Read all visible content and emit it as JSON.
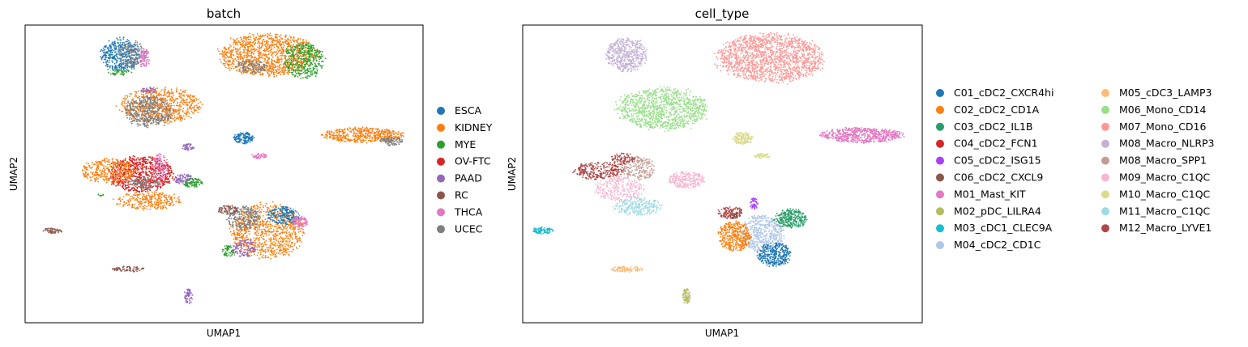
{
  "chart_data": [
    {
      "type": "scatter",
      "title": "batch",
      "xlabel": "UMAP1",
      "ylabel": "UMAP2",
      "xlim": [
        0,
        100
      ],
      "ylim": [
        0,
        100
      ],
      "legend_position": "right",
      "legend_columns": 1,
      "legend": [
        {
          "label": "ESCA",
          "color": "#1f77b4"
        },
        {
          "label": "KIDNEY",
          "color": "#ff7f0e"
        },
        {
          "label": "MYE",
          "color": "#2ca02c"
        },
        {
          "label": "OV-FTC",
          "color": "#d62728"
        },
        {
          "label": "PAAD",
          "color": "#9467bd"
        },
        {
          "label": "RC",
          "color": "#8c564b"
        },
        {
          "label": "THCA",
          "color": "#e377c2"
        },
        {
          "label": "UCEC",
          "color": "#7f7f7f"
        }
      ],
      "clusters": [
        {
          "series": "ESCA",
          "x": 24,
          "y": 90,
          "rx": 5,
          "ry": 5.5,
          "n": 420
        },
        {
          "series": "UCEC",
          "x": 27,
          "y": 90,
          "rx": 3.5,
          "ry": 4.5,
          "n": 150
        },
        {
          "series": "THCA",
          "x": 30,
          "y": 89,
          "rx": 1.5,
          "ry": 3,
          "n": 80
        },
        {
          "series": "MYE",
          "x": 24,
          "y": 84,
          "rx": 3,
          "ry": 1,
          "n": 40
        },
        {
          "series": "KIDNEY",
          "x": 61,
          "y": 90,
          "rx": 12,
          "ry": 7,
          "n": 1200
        },
        {
          "series": "MYE",
          "x": 70,
          "y": 88,
          "rx": 5,
          "ry": 6,
          "n": 380
        },
        {
          "series": "UCEC",
          "x": 57,
          "y": 86,
          "rx": 4,
          "ry": 2,
          "n": 120
        },
        {
          "series": "KIDNEY",
          "x": 34,
          "y": 73,
          "rx": 10,
          "ry": 6,
          "n": 700
        },
        {
          "series": "UCEC",
          "x": 31,
          "y": 71,
          "rx": 6,
          "ry": 5,
          "n": 450
        },
        {
          "series": "PAAD",
          "x": 31,
          "y": 78,
          "rx": 2,
          "ry": 1,
          "n": 40
        },
        {
          "series": "OV-FTC",
          "x": 29,
          "y": 50,
          "rx": 8,
          "ry": 6,
          "n": 800
        },
        {
          "series": "KIDNEY",
          "x": 21,
          "y": 51,
          "rx": 7,
          "ry": 4,
          "n": 350
        },
        {
          "series": "KIDNEY",
          "x": 31,
          "y": 41,
          "rx": 8,
          "ry": 3,
          "n": 280
        },
        {
          "series": "THCA",
          "x": 34,
          "y": 52,
          "rx": 2,
          "ry": 5,
          "n": 90
        },
        {
          "series": "UCEC",
          "x": 30,
          "y": 47,
          "rx": 4,
          "ry": 2,
          "n": 100
        },
        {
          "series": "PAAD",
          "x": 41,
          "y": 59,
          "rx": 1.5,
          "ry": 1.2,
          "n": 45
        },
        {
          "series": "PAAD",
          "x": 40,
          "y": 48,
          "rx": 2.5,
          "ry": 2,
          "n": 90
        },
        {
          "series": "MYE",
          "x": 42,
          "y": 47,
          "rx": 2.5,
          "ry": 1.5,
          "n": 90
        },
        {
          "series": "ESCA",
          "x": 55,
          "y": 62,
          "rx": 2.5,
          "ry": 2,
          "n": 140
        },
        {
          "series": "THCA",
          "x": 59,
          "y": 56,
          "rx": 2,
          "ry": 0.9,
          "n": 45
        },
        {
          "series": "KIDNEY",
          "x": 85,
          "y": 63,
          "rx": 10,
          "ry": 2.5,
          "n": 500
        },
        {
          "series": "UCEC",
          "x": 92,
          "y": 61,
          "rx": 3,
          "ry": 1.5,
          "n": 100
        },
        {
          "series": "KIDNEY",
          "x": 61,
          "y": 31,
          "rx": 9,
          "ry": 9,
          "n": 900
        },
        {
          "series": "UCEC",
          "x": 55,
          "y": 35,
          "rx": 4,
          "ry": 4,
          "n": 250
        },
        {
          "series": "ESCA",
          "x": 65,
          "y": 36,
          "rx": 4,
          "ry": 3,
          "n": 200
        },
        {
          "series": "THCA",
          "x": 69,
          "y": 34,
          "rx": 2,
          "ry": 2,
          "n": 100
        },
        {
          "series": "PAAD",
          "x": 55,
          "y": 25,
          "rx": 3,
          "ry": 3,
          "n": 120
        },
        {
          "series": "MYE",
          "x": 51,
          "y": 24,
          "rx": 1.5,
          "ry": 2,
          "n": 50
        },
        {
          "series": "RC",
          "x": 51,
          "y": 38,
          "rx": 2.5,
          "ry": 1.5,
          "n": 80
        },
        {
          "series": "RC",
          "x": 7,
          "y": 31,
          "rx": 2.5,
          "ry": 0.9,
          "n": 60
        },
        {
          "series": "RC",
          "x": 26,
          "y": 18,
          "rx": 4,
          "ry": 0.9,
          "n": 70
        },
        {
          "series": "PAAD",
          "x": 41,
          "y": 9,
          "rx": 1,
          "ry": 2.5,
          "n": 60
        },
        {
          "series": "MYE",
          "x": 19,
          "y": 43,
          "rx": 0.8,
          "ry": 0.5,
          "n": 8
        }
      ]
    },
    {
      "type": "scatter",
      "title": "cell_type",
      "xlabel": "UMAP1",
      "ylabel": "UMAP2",
      "xlim": [
        0,
        100
      ],
      "ylim": [
        0,
        100
      ],
      "legend_position": "right",
      "legend_columns": 2,
      "legend": [
        {
          "label": "C01_cDC2_CXCR4hi",
          "color": "#1f77b4"
        },
        {
          "label": "C02_cDC2_CD1A",
          "color": "#ff7f0e"
        },
        {
          "label": "C03_cDC2_IL1B",
          "color": "#279e68"
        },
        {
          "label": "C04_cDC2_FCN1",
          "color": "#d62728"
        },
        {
          "label": "C05_cDC2_ISG15",
          "color": "#aa40fc"
        },
        {
          "label": "C06_cDC2_CXCL9",
          "color": "#8c564b"
        },
        {
          "label": "M01_Mast_KIT",
          "color": "#e377c2"
        },
        {
          "label": "M02_pDC_LILRA4",
          "color": "#b5bd61"
        },
        {
          "label": "M03_cDC1_CLEC9A",
          "color": "#17becf"
        },
        {
          "label": "M04_cDC2_CD1C",
          "color": "#aec7e8"
        },
        {
          "label": "M05_cDC3_LAMP3",
          "color": "#ffbb78"
        },
        {
          "label": "M06_Mono_CD14",
          "color": "#98df8a"
        },
        {
          "label": "M07_Mono_CD16",
          "color": "#ff9896"
        },
        {
          "label": "M08_Macro_NLRP3",
          "color": "#c5b0d5"
        },
        {
          "label": "M08_Macro_SPP1",
          "color": "#c49c94"
        },
        {
          "label": "M09_Macro_C1QC",
          "color": "#f7b6d2"
        },
        {
          "label": "M10_Macro_C1QC",
          "color": "#dbdb8d"
        },
        {
          "label": "M11_Macro_C1QC",
          "color": "#9edae5"
        },
        {
          "label": "M12_Macro_LYVE1",
          "color": "#ad494a"
        }
      ],
      "clusters": [
        {
          "series": "M08_Macro_NLRP3",
          "x": 26,
          "y": 90,
          "rx": 5,
          "ry": 5.5,
          "n": 500
        },
        {
          "series": "M07_Mono_CD16",
          "x": 62,
          "y": 89,
          "rx": 13,
          "ry": 8,
          "n": 1600
        },
        {
          "series": "M06_Mono_CD14",
          "x": 35,
          "y": 72,
          "rx": 11,
          "ry": 7,
          "n": 1100
        },
        {
          "series": "M12_Macro_LYVE1",
          "x": 19,
          "y": 51,
          "rx": 6,
          "ry": 3,
          "n": 260
        },
        {
          "series": "M08_Macro_SPP1",
          "x": 29,
          "y": 52,
          "rx": 4,
          "ry": 4,
          "n": 220
        },
        {
          "series": "M09_Macro_C1QC",
          "x": 24,
          "y": 45,
          "rx": 6,
          "ry": 4,
          "n": 280
        },
        {
          "series": "M12_Macro_LYVE1",
          "x": 25,
          "y": 55,
          "rx": 3,
          "ry": 2,
          "n": 90
        },
        {
          "series": "M11_Macro_C1QC",
          "x": 29,
          "y": 39,
          "rx": 6,
          "ry": 3,
          "n": 260
        },
        {
          "series": "M09_Macro_C1QC",
          "x": 41,
          "y": 48,
          "rx": 4.5,
          "ry": 2.8,
          "n": 260
        },
        {
          "series": "M10_Macro_C1QC",
          "x": 55,
          "y": 62,
          "rx": 2.5,
          "ry": 2,
          "n": 150
        },
        {
          "series": "M10_Macro_C1QC",
          "x": 60,
          "y": 56,
          "rx": 2,
          "ry": 0.9,
          "n": 50
        },
        {
          "series": "M01_Mast_KIT",
          "x": 85,
          "y": 63,
          "rx": 10,
          "ry": 2.5,
          "n": 600
        },
        {
          "series": "M12_Macro_LYVE1",
          "x": 52,
          "y": 37,
          "rx": 3,
          "ry": 2,
          "n": 120
        },
        {
          "series": "C05_cDC2_ISG15",
          "x": 58,
          "y": 40,
          "rx": 1,
          "ry": 2,
          "n": 50
        },
        {
          "series": "C03_cDC2_IL1B",
          "x": 67,
          "y": 35,
          "rx": 4,
          "ry": 3,
          "n": 300
        },
        {
          "series": "M04_cDC2_CD1C",
          "x": 60,
          "y": 30,
          "rx": 5,
          "ry": 6,
          "n": 500
        },
        {
          "series": "C01_cDC2_CXCR4hi",
          "x": 63,
          "y": 23,
          "rx": 4,
          "ry": 4,
          "n": 350
        },
        {
          "series": "C02_cDC2_CD1A",
          "x": 53,
          "y": 29,
          "rx": 4,
          "ry": 5,
          "n": 400
        },
        {
          "series": "C06_cDC2_CXCL9",
          "x": 53,
          "y": 36,
          "rx": 1.5,
          "ry": 1,
          "n": 40
        },
        {
          "series": "M03_cDC1_CLEC9A",
          "x": 5,
          "y": 31,
          "rx": 2.5,
          "ry": 1.1,
          "n": 90
        },
        {
          "series": "M05_cDC3_LAMP3",
          "x": 26,
          "y": 18,
          "rx": 4,
          "ry": 0.9,
          "n": 90
        },
        {
          "series": "M02_pDC_LILRA4",
          "x": 41,
          "y": 9,
          "rx": 1,
          "ry": 2.5,
          "n": 80
        },
        {
          "series": "C04_cDC2_FCN1",
          "x": 23,
          "y": 52,
          "rx": 1,
          "ry": 1,
          "n": 15
        }
      ]
    }
  ]
}
